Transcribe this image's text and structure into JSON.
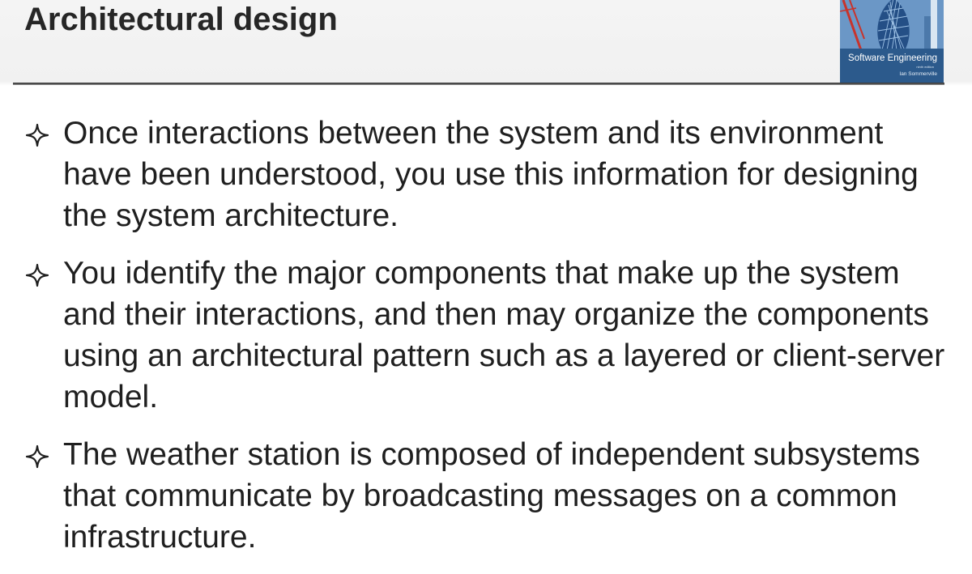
{
  "slide": {
    "title": "Architectural design"
  },
  "book_cover": {
    "title": "Software Engineering",
    "edition": "ninth edition",
    "author": "Ian Sommerville"
  },
  "bullets": [
    {
      "icon": "four-point-star-icon",
      "text": "Once interactions between the system and its environment have been understood, you use this information for designing the system architecture."
    },
    {
      "icon": "four-point-star-icon",
      "text": "You identify the major components that make up the system and their interactions, and then may organize the components using an architectural pattern such as a layered or client-server model."
    },
    {
      "icon": "four-point-star-icon",
      "text": "The weather station is composed of independent subsystems that communicate by broadcasting messages on a common infrastructure."
    }
  ],
  "colors": {
    "title_text": "#262626",
    "body_text": "#1f1f1f",
    "rule": "#3a3a3a",
    "cover_blue": "#3f6fa3"
  }
}
